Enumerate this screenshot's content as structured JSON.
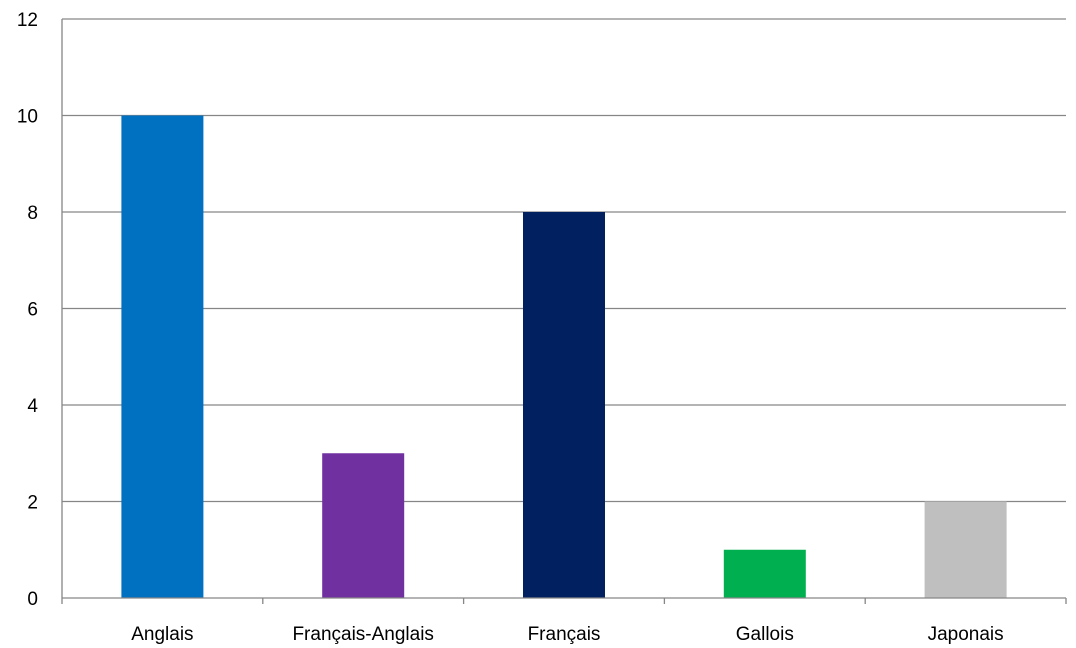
{
  "chart_data": {
    "type": "bar",
    "title": "",
    "xlabel": "",
    "ylabel": "",
    "categories": [
      "Anglais",
      "Français-Anglais",
      "Français",
      "Gallois",
      "Japonais"
    ],
    "values": [
      10,
      3,
      8,
      1,
      2
    ],
    "colors": [
      "#0070c0",
      "#7030a0",
      "#002060",
      "#00b050",
      "#bfbfbf"
    ],
    "ylim": [
      0,
      12
    ],
    "yticks": [
      "0",
      "2",
      "4",
      "6",
      "8",
      "10",
      "12"
    ],
    "grid": true,
    "legend": "none",
    "gridline_color": "#868686"
  }
}
